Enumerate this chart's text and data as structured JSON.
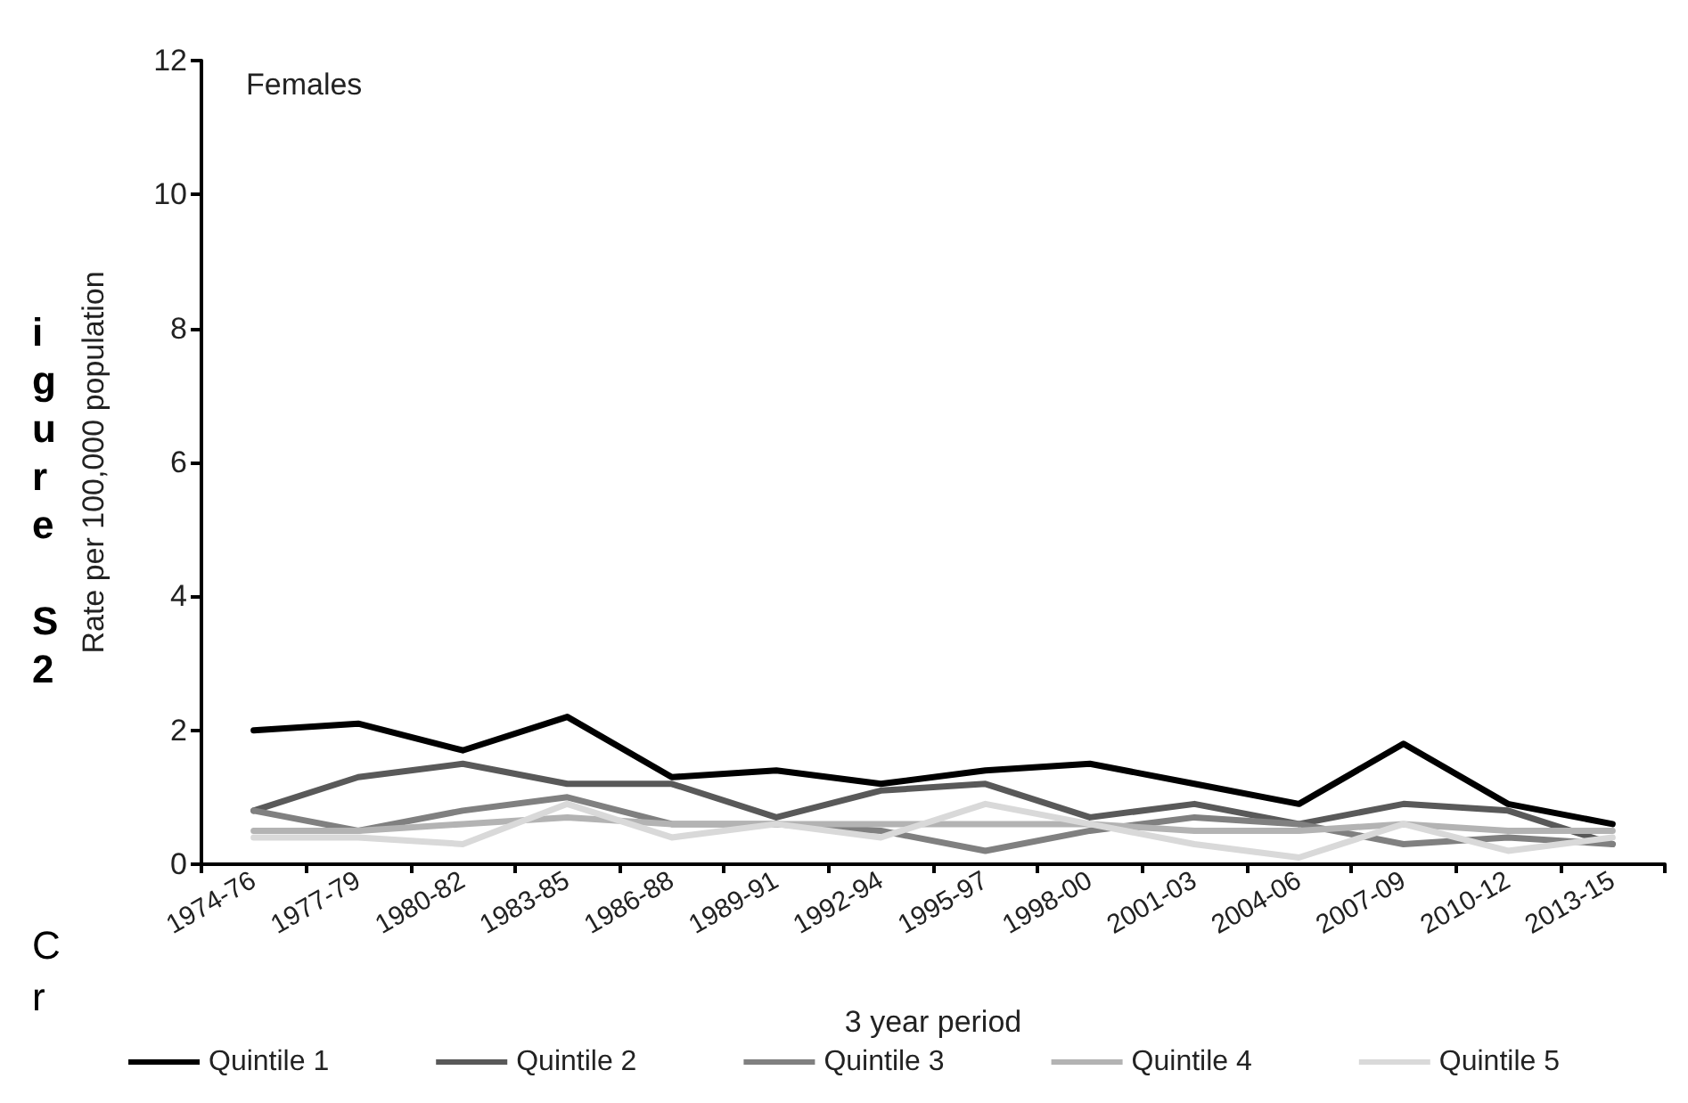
{
  "chart_data": {
    "type": "line",
    "title": "Females",
    "xlabel": "3 year period",
    "ylabel": "Rate per 100,000 population",
    "categories": [
      "1974-76",
      "1977-79",
      "1980-82",
      "1983-85",
      "1986-88",
      "1989-91",
      "1992-94",
      "1995-97",
      "1998-00",
      "2001-03",
      "2004-06",
      "2007-09",
      "2010-12",
      "2013-15"
    ],
    "series": [
      {
        "name": "Quintile 1",
        "color": "#000000",
        "values": [
          2.0,
          2.1,
          1.7,
          2.2,
          1.3,
          1.4,
          1.2,
          1.4,
          1.5,
          1.2,
          0.9,
          1.8,
          0.9,
          0.6
        ]
      },
      {
        "name": "Quintile 2",
        "color": "#595959",
        "values": [
          0.8,
          1.3,
          1.5,
          1.2,
          1.2,
          0.7,
          1.1,
          1.2,
          0.7,
          0.9,
          0.6,
          0.9,
          0.8,
          0.3
        ]
      },
      {
        "name": "Quintile 3",
        "color": "#808080",
        "values": [
          0.8,
          0.5,
          0.8,
          1.0,
          0.6,
          0.6,
          0.5,
          0.2,
          0.5,
          0.7,
          0.6,
          0.3,
          0.4,
          0.3
        ]
      },
      {
        "name": "Quintile 4",
        "color": "#b3b3b3",
        "values": [
          0.5,
          0.5,
          0.6,
          0.7,
          0.6,
          0.6,
          0.6,
          0.6,
          0.6,
          0.5,
          0.5,
          0.6,
          0.5,
          0.5
        ]
      },
      {
        "name": "Quintile 5",
        "color": "#d9d9d9",
        "values": [
          0.4,
          0.4,
          0.3,
          0.9,
          0.4,
          0.6,
          0.4,
          0.9,
          0.6,
          0.3,
          0.1,
          0.6,
          0.2,
          0.4
        ]
      }
    ],
    "ylim": [
      0,
      12
    ],
    "yticks": [
      0,
      2,
      4,
      6,
      8,
      10,
      12
    ],
    "grid": false,
    "legend": "bottom",
    "marker": "none",
    "line_style": "solid",
    "annotations": [
      "igure S2",
      "Cr"
    ]
  }
}
